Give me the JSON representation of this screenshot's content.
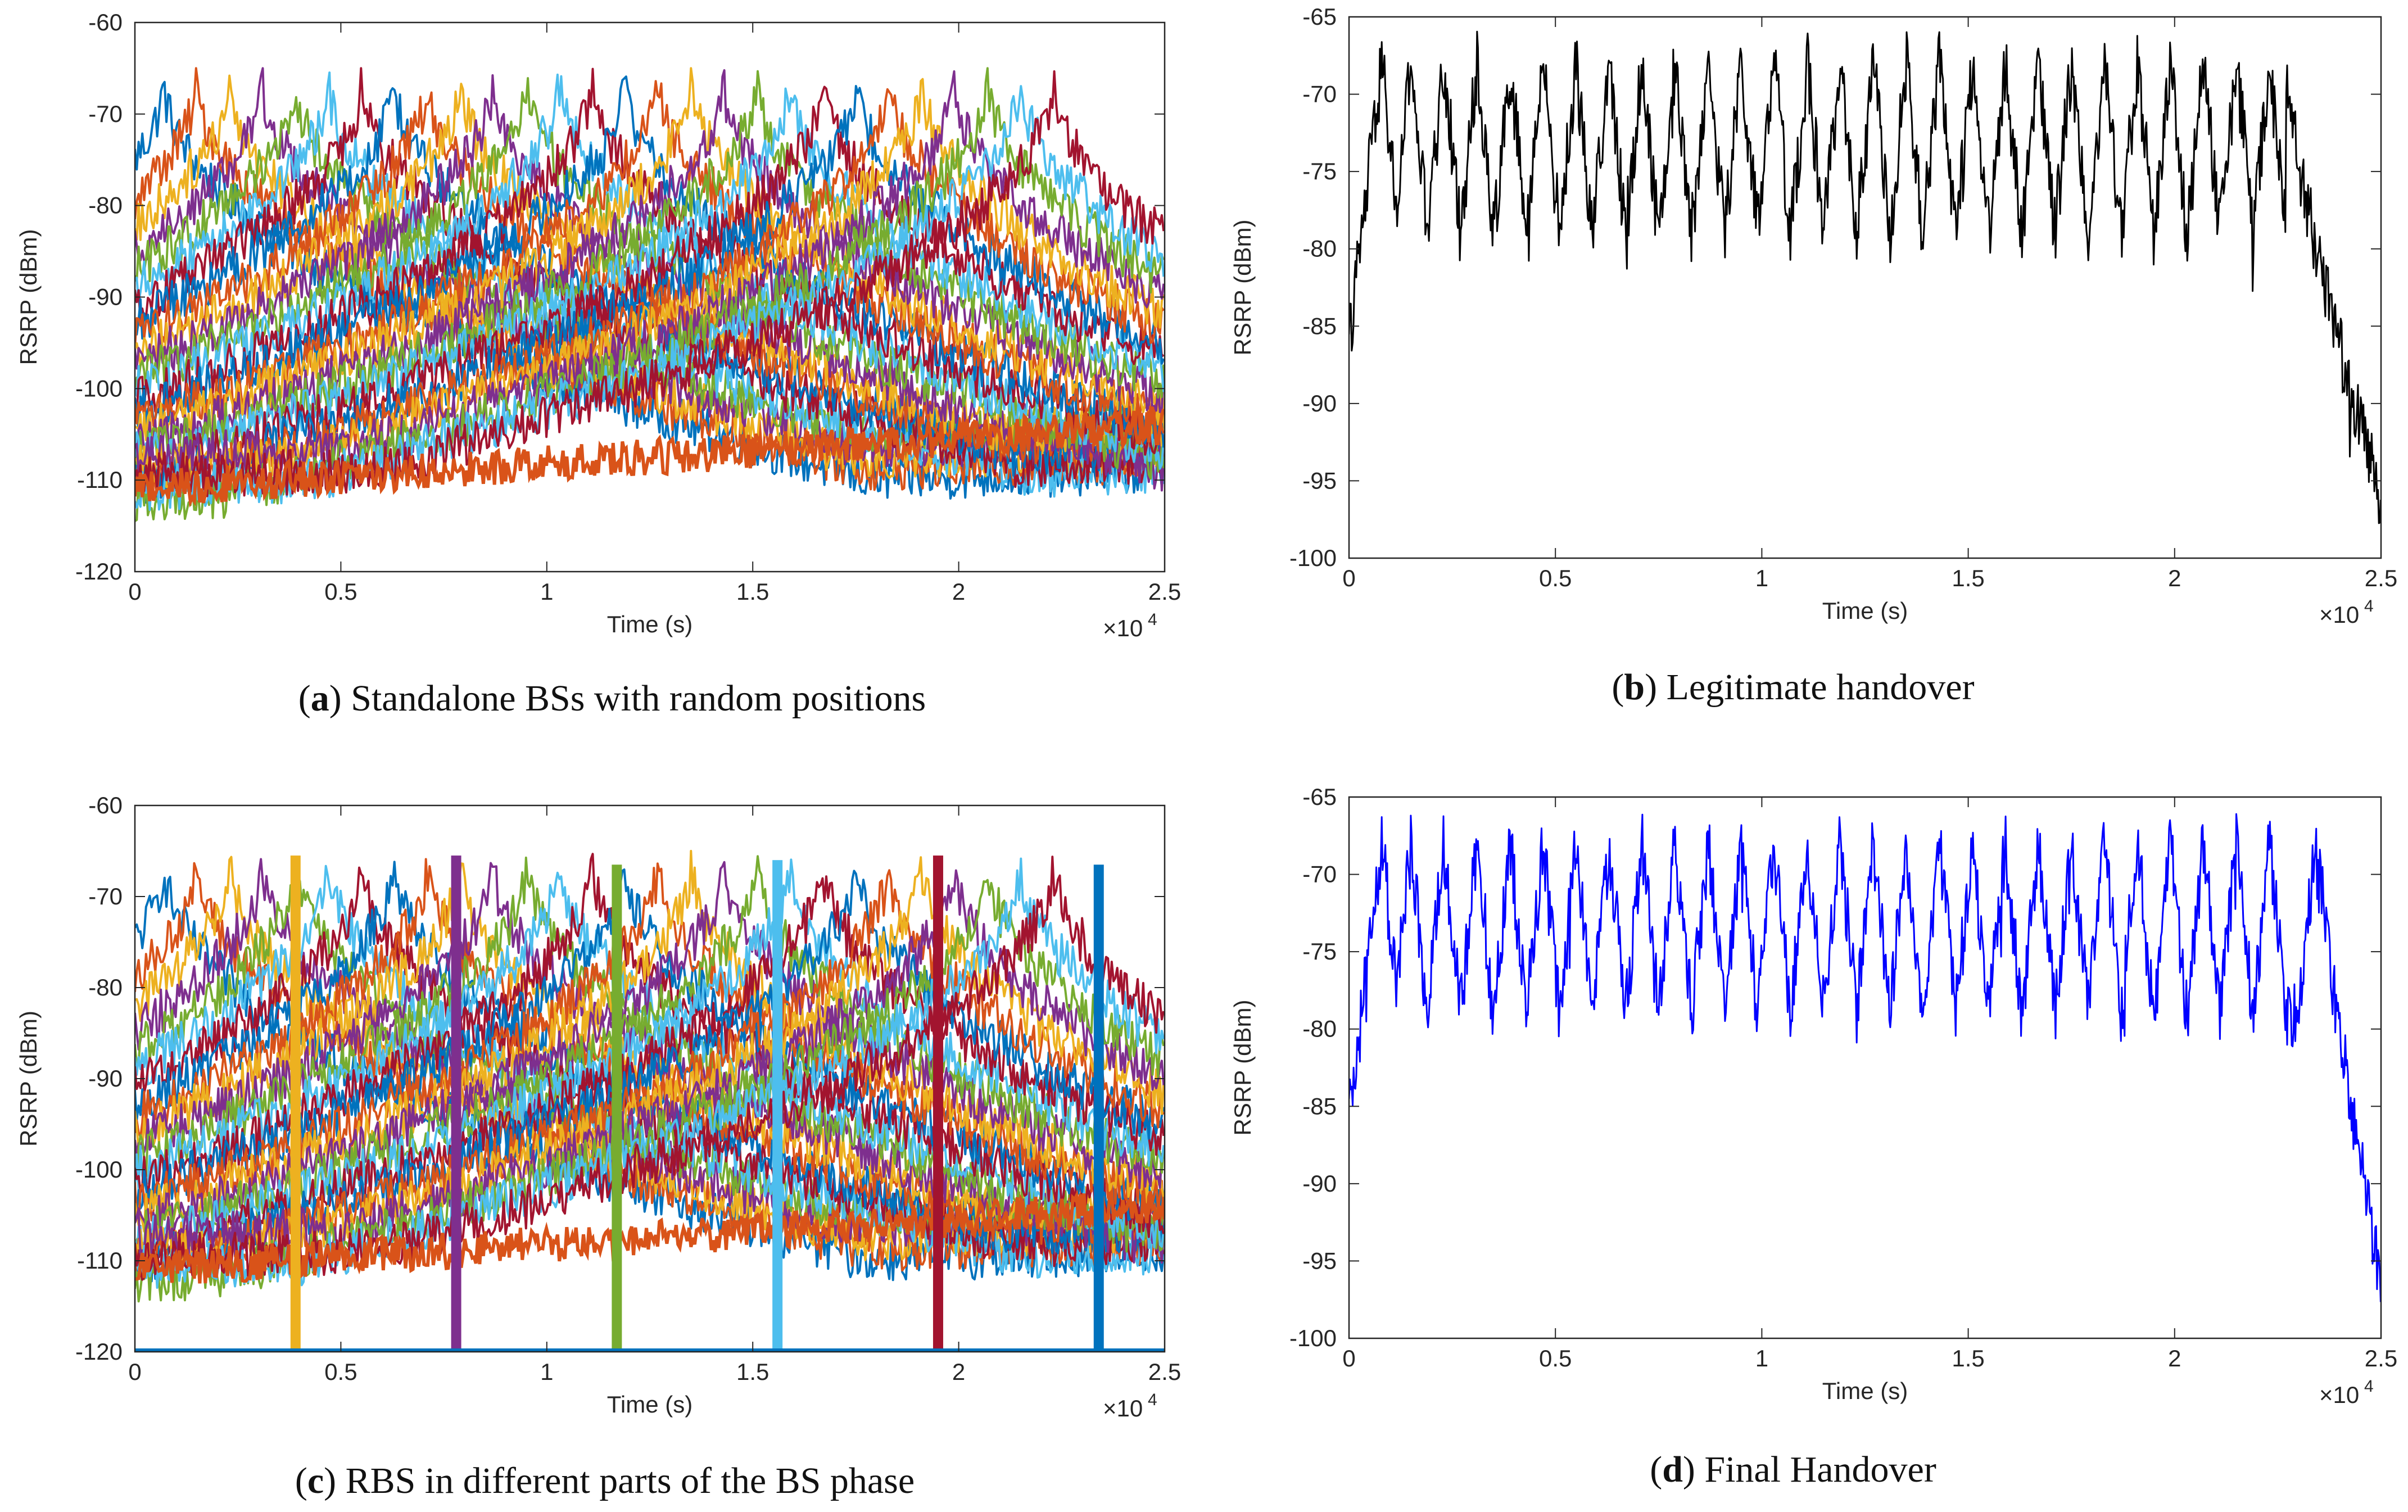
{
  "figure": {
    "captions": [
      {
        "letter": "a",
        "text": "Standalone BSs with random positions"
      },
      {
        "letter": "b",
        "text": "Legitimate handover"
      },
      {
        "letter": "c",
        "text": "RBS in different parts of the BS phase"
      },
      {
        "letter": "d",
        "text": "Final Handover"
      }
    ]
  },
  "chart_data": [
    {
      "id": "a",
      "type": "line",
      "title": "Standalone BSs with random positions",
      "xlabel": "Time (s)",
      "ylabel": "RSRP (dBm)",
      "x_multiplier": "×10",
      "x_multiplier_exp": "4",
      "xlim": [
        0,
        2.5
      ],
      "ylim": [
        -120,
        -60
      ],
      "xticks": [
        0,
        0.5,
        1,
        1.5,
        2,
        2.5
      ],
      "xtick_labels": [
        "0",
        "0.5",
        "1",
        "1.5",
        "2",
        "2.5"
      ],
      "yticks": [
        -60,
        -70,
        -80,
        -90,
        -100,
        -110,
        -120
      ],
      "ytick_labels": [
        "-60",
        "-70",
        "-80",
        "-90",
        "-100",
        "-110",
        "-120"
      ],
      "series_colors": [
        "#0072BD",
        "#D95319",
        "#EDB120",
        "#7E2F8E",
        "#77AC30",
        "#4DBEEE",
        "#A2142F"
      ],
      "bs_peak_times": [
        0.07,
        0.15,
        0.23,
        0.31,
        0.39,
        0.47,
        0.55,
        0.63,
        0.71,
        0.79,
        0.87,
        0.95,
        1.03,
        1.11,
        1.19,
        1.27,
        1.35,
        1.43,
        1.51,
        1.59,
        1.67,
        1.75,
        1.83,
        1.91,
        1.99,
        2.07,
        2.15,
        2.23
      ],
      "peak_rsrp": -66,
      "floor_rsrp": -112,
      "rbs_towers": []
    },
    {
      "id": "b",
      "type": "line",
      "title": "Legitimate handover",
      "xlabel": "Time (s)",
      "ylabel": "RSRP (dBm)",
      "x_multiplier": "×10",
      "x_multiplier_exp": "4",
      "xlim": [
        0,
        2.5
      ],
      "ylim": [
        -100,
        -65
      ],
      "xticks": [
        0,
        0.5,
        1,
        1.5,
        2,
        2.5
      ],
      "xtick_labels": [
        "0",
        "0.5",
        "1",
        "1.5",
        "2",
        "2.5"
      ],
      "yticks": [
        -65,
        -70,
        -75,
        -80,
        -85,
        -90,
        -95,
        -100
      ],
      "ytick_labels": [
        "-65",
        "-70",
        "-75",
        "-80",
        "-85",
        "-90",
        "-95",
        "-100"
      ],
      "line_color": "#000000",
      "peak_times": [
        0.08,
        0.15,
        0.23,
        0.31,
        0.39,
        0.47,
        0.55,
        0.63,
        0.71,
        0.79,
        0.87,
        0.95,
        1.03,
        1.11,
        1.19,
        1.27,
        1.35,
        1.43,
        1.51,
        1.59,
        1.67,
        1.75,
        1.83,
        1.91,
        1.99,
        2.07,
        2.15,
        2.23
      ],
      "peak_rsrp": -68,
      "trough_rsrp": -79,
      "end_rsrp": -96,
      "drop_start": 2.27
    },
    {
      "id": "c",
      "type": "line",
      "title": "RBS in different parts of the BS phase",
      "xlabel": "Time (s)",
      "ylabel": "RSRP (dBm)",
      "x_multiplier": "×10",
      "x_multiplier_exp": "4",
      "xlim": [
        0,
        2.5
      ],
      "ylim": [
        -120,
        -60
      ],
      "xticks": [
        0,
        0.5,
        1,
        1.5,
        2,
        2.5
      ],
      "xtick_labels": [
        "0",
        "0.5",
        "1",
        "1.5",
        "2",
        "2.5"
      ],
      "yticks": [
        -60,
        -70,
        -80,
        -90,
        -100,
        -110,
        -120
      ],
      "ytick_labels": [
        "-60",
        "-70",
        "-80",
        "-90",
        "-100",
        "-110",
        "-120"
      ],
      "series_colors": [
        "#0072BD",
        "#D95319",
        "#EDB120",
        "#7E2F8E",
        "#77AC30",
        "#4DBEEE",
        "#A2142F"
      ],
      "bs_peak_times": [
        0.07,
        0.15,
        0.23,
        0.31,
        0.39,
        0.47,
        0.55,
        0.63,
        0.71,
        0.79,
        0.87,
        0.95,
        1.03,
        1.11,
        1.19,
        1.27,
        1.35,
        1.43,
        1.51,
        1.59,
        1.67,
        1.75,
        1.83,
        1.91,
        1.99,
        2.07,
        2.15,
        2.23
      ],
      "peak_rsrp": -66,
      "floor_rsrp": -112,
      "rbs_towers": [
        {
          "time": 0.39,
          "top": -65.5,
          "color": "#EDB120"
        },
        {
          "time": 0.78,
          "top": -65.5,
          "color": "#7E2F8E"
        },
        {
          "time": 1.17,
          "top": -66.5,
          "color": "#77AC30"
        },
        {
          "time": 1.56,
          "top": -66,
          "color": "#4DBEEE"
        },
        {
          "time": 1.95,
          "top": -65.5,
          "color": "#A2142F"
        },
        {
          "time": 2.34,
          "top": -66.5,
          "color": "#0072BD"
        }
      ]
    },
    {
      "id": "d",
      "type": "line",
      "title": "Final Handover",
      "xlabel": "Time (s)",
      "ylabel": "RSRP (dBm)",
      "x_multiplier": "×10",
      "x_multiplier_exp": "4",
      "xlim": [
        0,
        2.5
      ],
      "ylim": [
        -100,
        -65
      ],
      "xticks": [
        0,
        0.5,
        1,
        1.5,
        2,
        2.5
      ],
      "xtick_labels": [
        "0",
        "0.5",
        "1",
        "1.5",
        "2",
        "2.5"
      ],
      "yticks": [
        -65,
        -70,
        -75,
        -80,
        -85,
        -90,
        -95,
        -100
      ],
      "ytick_labels": [
        "-65",
        "-70",
        "-75",
        "-80",
        "-85",
        "-90",
        "-95",
        "-100"
      ],
      "line_color": "#0000FF",
      "peak_times": [
        0.08,
        0.15,
        0.23,
        0.31,
        0.39,
        0.47,
        0.55,
        0.63,
        0.71,
        0.79,
        0.87,
        0.95,
        1.03,
        1.11,
        1.19,
        1.27,
        1.35,
        1.43,
        1.51,
        1.59,
        1.67,
        1.75,
        1.83,
        1.91,
        1.99,
        2.07,
        2.15,
        2.23,
        2.34
      ],
      "peak_rsrp": -68,
      "trough_rsrp": -79,
      "end_rsrp": -96,
      "drop_start": 2.35
    }
  ]
}
